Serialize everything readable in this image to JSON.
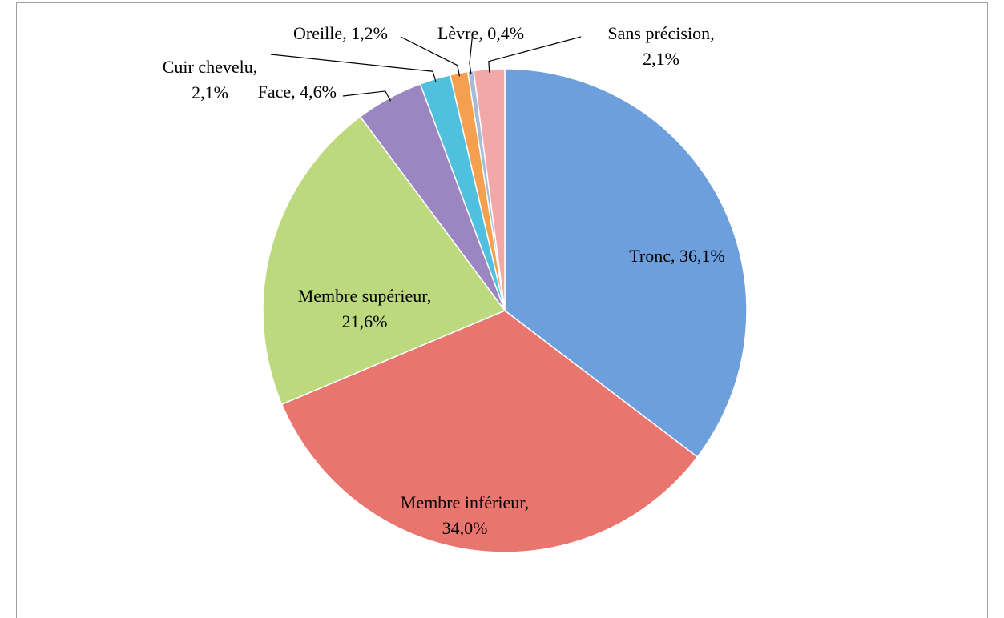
{
  "chart_data": {
    "type": "pie",
    "categories": [
      "Tronc",
      "Membre inférieur",
      "Membre supérieur",
      "Face",
      "Cuir chevelu",
      "Oreille",
      "Lèvre",
      "Sans précision"
    ],
    "values": [
      36.1,
      34.0,
      21.6,
      4.6,
      2.1,
      1.2,
      0.4,
      2.1
    ],
    "value_labels": [
      "Tronc, 36,1%",
      "Membre inférieur, 34,0%",
      "Membre supérieur, 21,6%",
      "Face, 4,6%",
      "Cuir chevelu, 2,1%",
      "Oreille, 1,2%",
      "Lèvre, 0,4%",
      "Sans précision, 2,1%"
    ],
    "colors": [
      "#6d9fdc",
      "#e9756f",
      "#bcd97e",
      "#9c86c2",
      "#4fc0de",
      "#f5a04e",
      "#a9bad6",
      "#f2a8a7"
    ]
  }
}
